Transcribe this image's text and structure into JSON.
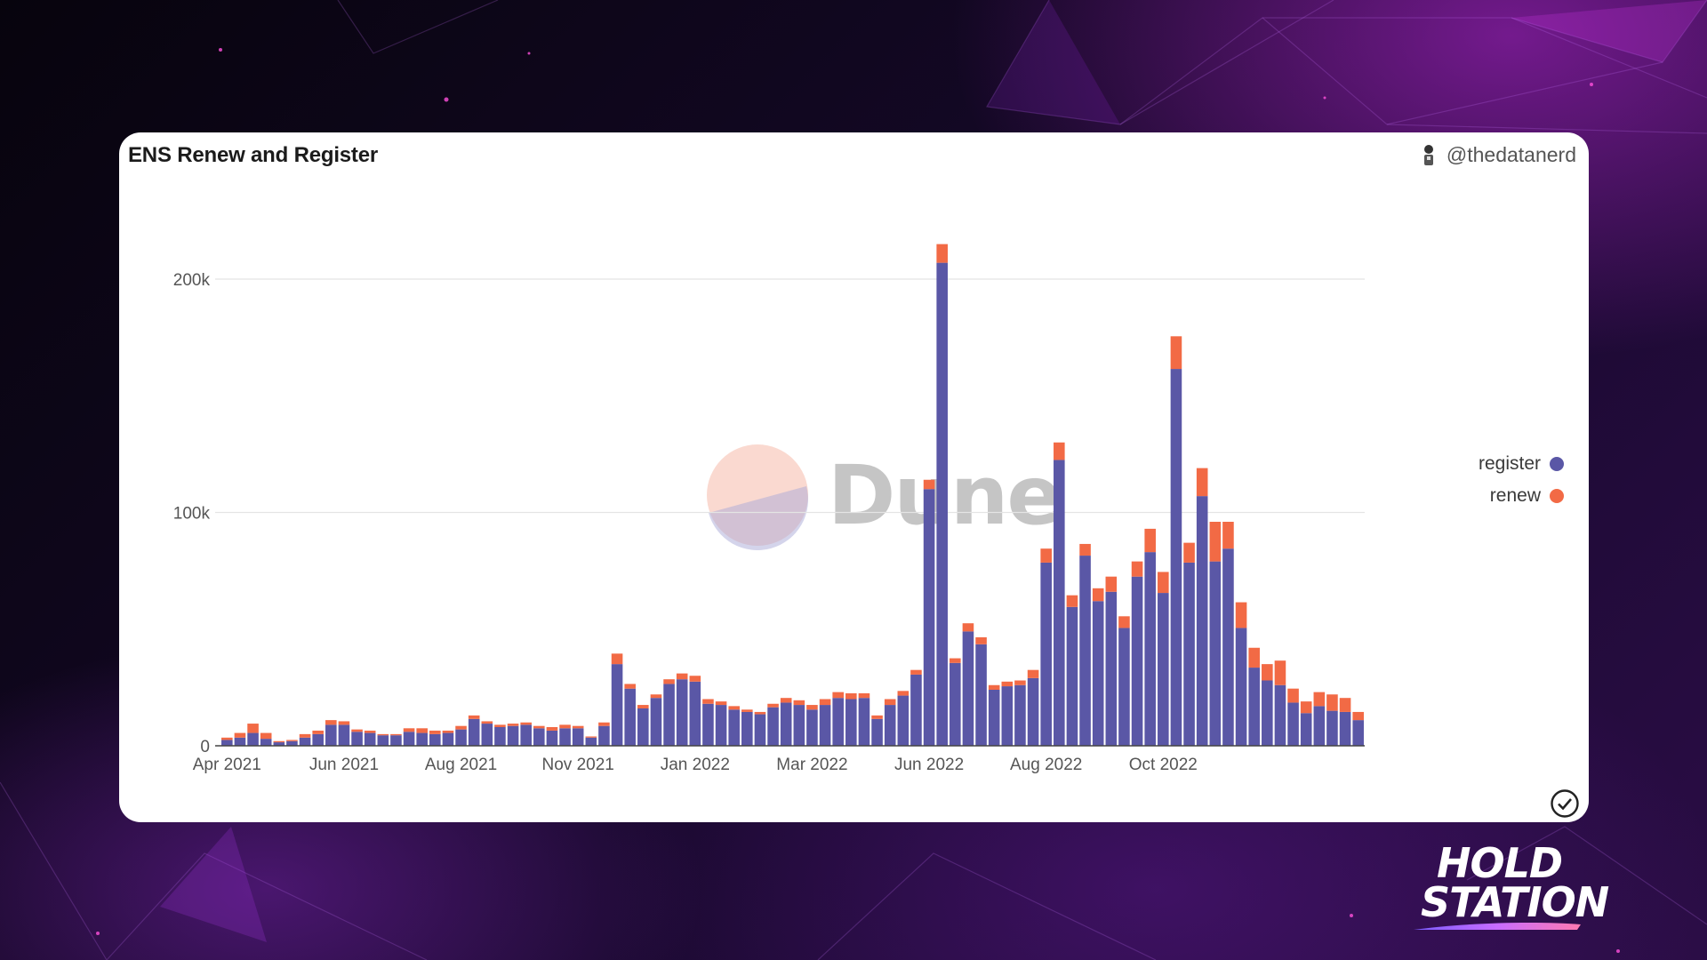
{
  "card": {
    "title": "ENS Renew and Register",
    "author": "@thedatanerd",
    "watermark": "Dune"
  },
  "brand": {
    "line1": "HOLD",
    "line2": "STATION"
  },
  "colors": {
    "register": "#5a57a6",
    "renew": "#f26a45",
    "accent": "#c02ad8"
  },
  "chart_data": {
    "type": "bar",
    "stacked": true,
    "title": "ENS Renew and Register",
    "xlabel": "",
    "ylabel": "",
    "ylim": [
      0,
      200000
    ],
    "yticks": [
      0,
      100000,
      200000
    ],
    "ytick_labels": [
      "0",
      "100k",
      "200k"
    ],
    "xtick_labels": [
      "Apr 2021",
      "Jun 2021",
      "Aug 2021",
      "Nov 2021",
      "Jan 2022",
      "Mar 2022",
      "Jun 2022",
      "Aug 2022",
      "Oct 2022"
    ],
    "xtick_positions": [
      0.5,
      9.5,
      18.5,
      27.5,
      36.5,
      45.5,
      54.5,
      63.5,
      72.5
    ],
    "grid": true,
    "legend_position": "right",
    "series": [
      {
        "name": "register",
        "values": [
          2500,
          3500,
          5500,
          3000,
          1500,
          2000,
          3500,
          5000,
          9000,
          9000,
          6000,
          5500,
          4500,
          4500,
          6000,
          5500,
          5000,
          5500,
          7000,
          11500,
          9500,
          8000,
          8500,
          9000,
          7500,
          6500,
          7500,
          7500,
          3500,
          8500,
          35000,
          24500,
          16000,
          20500,
          26500,
          28500,
          27500,
          18000,
          17500,
          15500,
          14500,
          13500,
          16500,
          18500,
          17500,
          15500,
          17500,
          20500,
          20000,
          20500,
          11500,
          17500,
          21500,
          30500,
          110000,
          207000,
          35500,
          49000,
          43500,
          24000,
          25500,
          26000,
          29000,
          78500,
          122500,
          59500,
          81500,
          62000,
          66000,
          50500,
          72500,
          83000,
          65500,
          161500,
          78500,
          107000,
          79000,
          84500,
          50500,
          33500,
          28000,
          26000,
          18500,
          14000,
          17000,
          15000,
          14500,
          11000
        ]
      },
      {
        "name": "renew",
        "values": [
          1000,
          2000,
          4000,
          2500,
          500,
          500,
          1500,
          1500,
          2000,
          1500,
          1000,
          1000,
          500,
          500,
          1500,
          2000,
          1500,
          1000,
          1500,
          1500,
          1000,
          1000,
          1000,
          1000,
          1000,
          1500,
          1500,
          1000,
          500,
          1500,
          4500,
          2000,
          1500,
          1500,
          2000,
          2500,
          2500,
          2000,
          1500,
          1500,
          1000,
          1000,
          1500,
          2000,
          2000,
          2000,
          2500,
          2500,
          2500,
          2000,
          1500,
          2500,
          2000,
          2000,
          4000,
          8000,
          2000,
          3500,
          3000,
          2000,
          2000,
          2000,
          3500,
          6000,
          7500,
          5000,
          5000,
          5500,
          6500,
          5000,
          6500,
          10000,
          9000,
          14000,
          8500,
          12000,
          17000,
          11500,
          11000,
          8500,
          7000,
          10500,
          6000,
          5000,
          6000,
          7000,
          6000,
          3500
        ]
      }
    ]
  }
}
